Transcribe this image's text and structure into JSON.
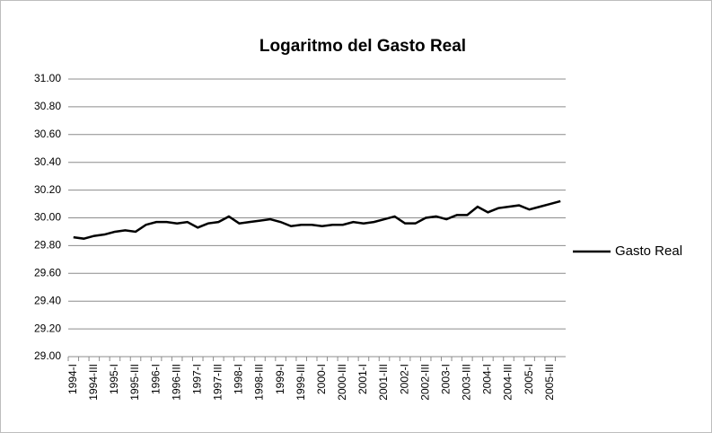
{
  "chart_data": {
    "type": "line",
    "title": "Logaritmo del Gasto Real",
    "categories": [
      "1994-I",
      null,
      "1994-III",
      null,
      "1995-I",
      null,
      "1995-III",
      null,
      "1996-I",
      null,
      "1996-III",
      null,
      "1997-I",
      null,
      "1997-III",
      null,
      "1998-I",
      null,
      "1998-III",
      null,
      "1999-I",
      null,
      "1999-III",
      null,
      "2000-I",
      null,
      "2000-III",
      null,
      "2001-I",
      null,
      "2001-III",
      null,
      "2002-I",
      null,
      "2002-III",
      null,
      "2003-I",
      null,
      "2003-III",
      null,
      "2004-I",
      null,
      "2004-III",
      null,
      "2005-I",
      null,
      "2005-III",
      null
    ],
    "series": [
      {
        "name": "Gasto Real",
        "color": "#000000",
        "values": [
          29.86,
          29.85,
          29.87,
          29.88,
          29.9,
          29.91,
          29.9,
          29.95,
          29.97,
          29.97,
          29.96,
          29.97,
          29.93,
          29.96,
          29.97,
          30.01,
          29.96,
          29.97,
          29.98,
          29.99,
          29.97,
          29.94,
          29.95,
          29.95,
          29.94,
          29.95,
          29.95,
          29.97,
          29.96,
          29.97,
          29.99,
          30.01,
          29.96,
          29.96,
          30.0,
          30.01,
          29.99,
          30.02,
          30.02,
          30.08,
          30.04,
          30.07,
          30.08,
          30.09,
          30.06,
          30.08,
          30.1,
          30.12
        ]
      }
    ],
    "ylim": [
      29.0,
      31.0
    ],
    "yticks": [
      {
        "value": 29.0,
        "label": "29.00"
      },
      {
        "value": 29.2,
        "label": "29.20"
      },
      {
        "value": 29.4,
        "label": "29.40"
      },
      {
        "value": 29.6,
        "label": "29.60"
      },
      {
        "value": 29.8,
        "label": "29.80"
      },
      {
        "value": 30.0,
        "label": "30.00"
      },
      {
        "value": 30.2,
        "label": "30.20"
      },
      {
        "value": 30.4,
        "label": "30.40"
      },
      {
        "value": 30.6,
        "label": "30.60"
      },
      {
        "value": 30.8,
        "label": "30.80"
      },
      {
        "value": 31.0,
        "label": "31.00"
      }
    ],
    "grid": true,
    "legend": "right"
  }
}
